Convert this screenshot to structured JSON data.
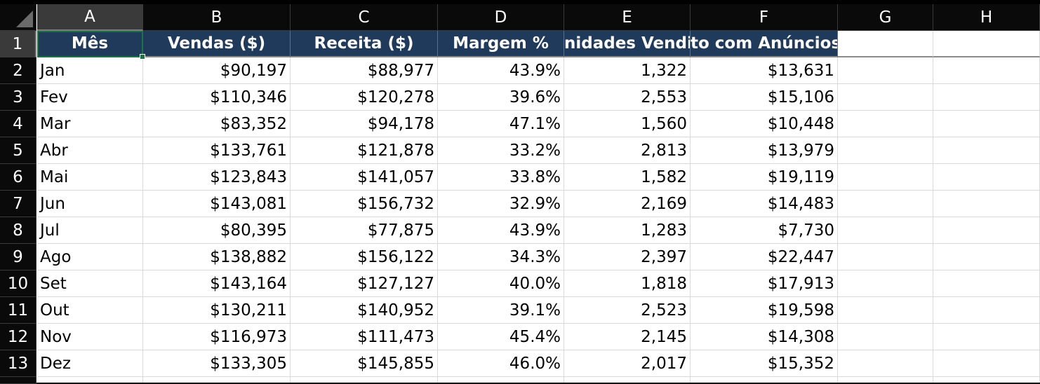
{
  "columns": [
    "A",
    "B",
    "C",
    "D",
    "E",
    "F",
    "G",
    "H"
  ],
  "rows": [
    "1",
    "2",
    "3",
    "4",
    "5",
    "6",
    "7",
    "8",
    "9",
    "10",
    "11",
    "12",
    "13"
  ],
  "header_row": [
    "Mês",
    "Vendas ($)",
    "Receita ($)",
    "Margem %",
    "nidades Vendid",
    "to com Anúncios"
  ],
  "data": [
    [
      "Jan",
      "$90,197",
      "$88,977",
      "43.9%",
      "1,322",
      "$13,631"
    ],
    [
      "Fev",
      "$110,346",
      "$120,278",
      "39.6%",
      "2,553",
      "$15,106"
    ],
    [
      "Mar",
      "$83,352",
      "$94,178",
      "47.1%",
      "1,560",
      "$10,448"
    ],
    [
      "Abr",
      "$133,761",
      "$121,878",
      "33.2%",
      "2,813",
      "$13,979"
    ],
    [
      "Mai",
      "$123,843",
      "$141,057",
      "33.8%",
      "1,582",
      "$19,119"
    ],
    [
      "Jun",
      "$143,081",
      "$156,732",
      "32.9%",
      "2,169",
      "$14,483"
    ],
    [
      "Jul",
      "$80,395",
      "$77,875",
      "43.9%",
      "1,283",
      "$7,730"
    ],
    [
      "Ago",
      "$138,882",
      "$156,122",
      "34.3%",
      "2,397",
      "$22,447"
    ],
    [
      "Set",
      "$143,164",
      "$127,127",
      "40.0%",
      "1,818",
      "$17,913"
    ],
    [
      "Out",
      "$130,211",
      "$140,952",
      "39.1%",
      "2,523",
      "$19,598"
    ],
    [
      "Nov",
      "$116,973",
      "$111,473",
      "45.4%",
      "2,145",
      "$14,308"
    ],
    [
      "Dez",
      "$133,305",
      "$145,855",
      "46.0%",
      "2,017",
      "$15,352"
    ]
  ],
  "selection": {
    "column": "A",
    "row": "1"
  },
  "colors": {
    "header_fill": "#203a5c",
    "header_text": "#ffffff",
    "active_border": "#1e7145",
    "gridline": "#d9d9d9",
    "chrome_background": "#0a0a0a"
  }
}
